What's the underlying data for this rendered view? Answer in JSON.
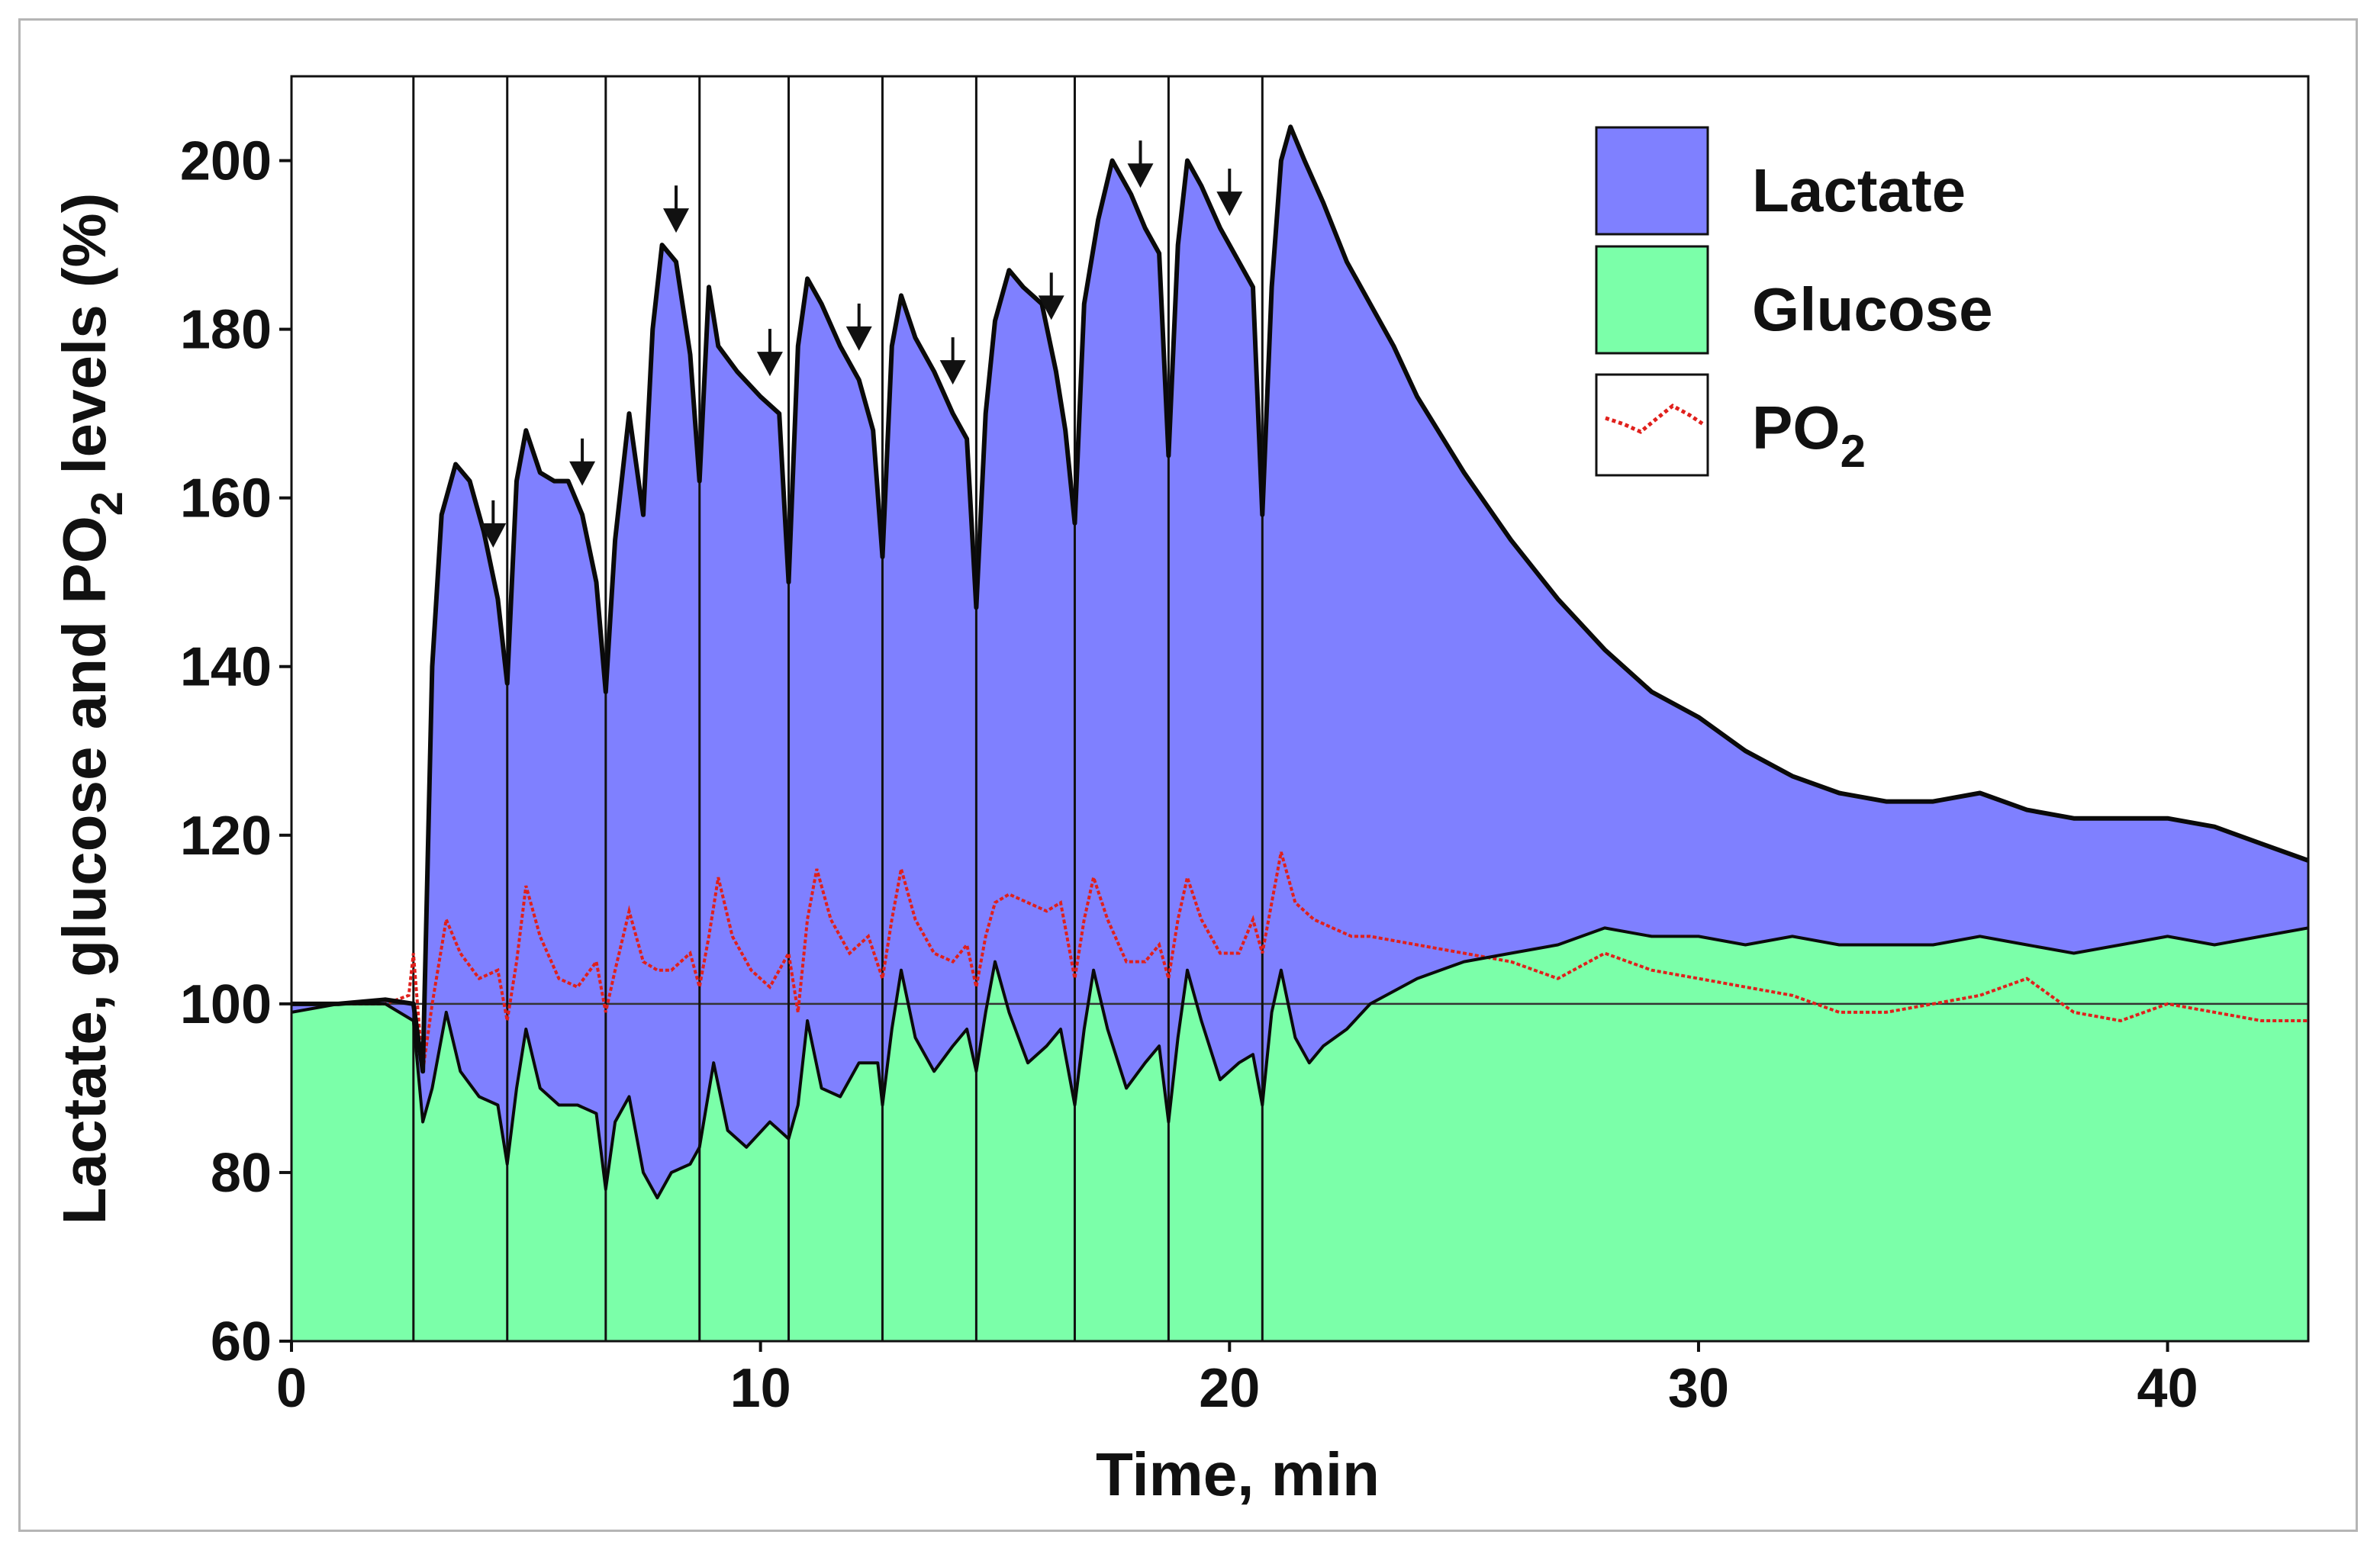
{
  "chart_data": {
    "type": "area",
    "title": "",
    "xlabel": "Time, min",
    "ylabel": "Lactate, glucose and PO2 levels (%)",
    "ylabel_parts": {
      "pre": "Lactate, glucose and PO",
      "sub": "2",
      "post": " levels (%)"
    },
    "xlim": [
      0,
      43
    ],
    "ylim": [
      60,
      210
    ],
    "xticks": [
      0,
      10,
      20,
      30,
      40
    ],
    "yticks": [
      60,
      80,
      100,
      120,
      140,
      160,
      180,
      200
    ],
    "reference_line": 100,
    "legend_position": "top-right",
    "legend": [
      {
        "name": "Lactate",
        "color": "#7f80ff",
        "kind": "area"
      },
      {
        "name": "Glucose",
        "color": "#7bffa9",
        "kind": "area"
      },
      {
        "name": "PO2",
        "label_main": "PO",
        "label_sub": "2",
        "color": "#e0201c",
        "kind": "dotted-line"
      }
    ],
    "vertical_markers_min": [
      2.6,
      4.6,
      6.7,
      8.7,
      10.6,
      12.6,
      14.6,
      16.7,
      18.7,
      20.7
    ],
    "arrow_markers_min": [
      4.3,
      6.2,
      8.2,
      10.2,
      12.1,
      14.1,
      16.2,
      18.1,
      20.0
    ],
    "series": [
      {
        "name": "Lactate",
        "color": "#7f80ff",
        "points": [
          [
            0,
            100
          ],
          [
            1,
            100
          ],
          [
            2,
            100.5
          ],
          [
            2.6,
            100
          ],
          [
            2.8,
            92
          ],
          [
            3.0,
            140
          ],
          [
            3.2,
            158
          ],
          [
            3.5,
            164
          ],
          [
            3.8,
            162
          ],
          [
            4.1,
            156
          ],
          [
            4.4,
            148
          ],
          [
            4.6,
            138
          ],
          [
            4.8,
            162
          ],
          [
            5.0,
            168
          ],
          [
            5.3,
            163
          ],
          [
            5.6,
            162
          ],
          [
            5.9,
            162
          ],
          [
            6.2,
            158
          ],
          [
            6.5,
            150
          ],
          [
            6.7,
            137
          ],
          [
            6.9,
            155
          ],
          [
            7.2,
            170
          ],
          [
            7.5,
            158
          ],
          [
            7.7,
            180
          ],
          [
            7.9,
            190
          ],
          [
            8.2,
            188
          ],
          [
            8.5,
            177
          ],
          [
            8.7,
            162
          ],
          [
            8.9,
            185
          ],
          [
            9.1,
            178
          ],
          [
            9.5,
            175
          ],
          [
            10.0,
            172
          ],
          [
            10.4,
            170
          ],
          [
            10.6,
            150
          ],
          [
            10.8,
            178
          ],
          [
            11.0,
            186
          ],
          [
            11.3,
            183
          ],
          [
            11.7,
            178
          ],
          [
            12.1,
            174
          ],
          [
            12.4,
            168
          ],
          [
            12.6,
            153
          ],
          [
            12.8,
            178
          ],
          [
            13.0,
            184
          ],
          [
            13.3,
            179
          ],
          [
            13.7,
            175
          ],
          [
            14.1,
            170
          ],
          [
            14.4,
            167
          ],
          [
            14.6,
            147
          ],
          [
            14.8,
            170
          ],
          [
            15.0,
            181
          ],
          [
            15.3,
            187
          ],
          [
            15.6,
            185
          ],
          [
            16.0,
            183
          ],
          [
            16.3,
            175
          ],
          [
            16.5,
            168
          ],
          [
            16.7,
            157
          ],
          [
            16.9,
            183
          ],
          [
            17.2,
            193
          ],
          [
            17.5,
            200
          ],
          [
            17.9,
            196
          ],
          [
            18.2,
            192
          ],
          [
            18.5,
            189
          ],
          [
            18.7,
            165
          ],
          [
            18.9,
            190
          ],
          [
            19.1,
            200
          ],
          [
            19.4,
            197
          ],
          [
            19.8,
            192
          ],
          [
            20.2,
            188
          ],
          [
            20.5,
            185
          ],
          [
            20.7,
            158
          ],
          [
            20.9,
            185
          ],
          [
            21.1,
            200
          ],
          [
            21.3,
            204
          ],
          [
            21.6,
            200
          ],
          [
            22.0,
            195
          ],
          [
            22.5,
            188
          ],
          [
            23.0,
            183
          ],
          [
            23.5,
            178
          ],
          [
            24,
            172
          ],
          [
            25,
            163
          ],
          [
            26,
            155
          ],
          [
            27,
            148
          ],
          [
            28,
            142
          ],
          [
            29,
            137
          ],
          [
            30,
            134
          ],
          [
            31,
            130
          ],
          [
            32,
            127
          ],
          [
            33,
            125
          ],
          [
            34,
            124
          ],
          [
            35,
            124
          ],
          [
            36,
            125
          ],
          [
            37,
            123
          ],
          [
            38,
            122
          ],
          [
            39,
            122
          ],
          [
            40,
            122
          ],
          [
            41,
            121
          ],
          [
            42,
            119
          ],
          [
            43,
            117
          ]
        ]
      },
      {
        "name": "Glucose",
        "color": "#7bffa9",
        "points": [
          [
            0,
            99
          ],
          [
            1,
            100
          ],
          [
            2,
            100
          ],
          [
            2.6,
            98
          ],
          [
            2.8,
            86
          ],
          [
            3.0,
            90
          ],
          [
            3.3,
            99
          ],
          [
            3.6,
            92
          ],
          [
            4.0,
            89
          ],
          [
            4.4,
            88
          ],
          [
            4.6,
            81
          ],
          [
            4.8,
            90
          ],
          [
            5.0,
            97
          ],
          [
            5.3,
            90
          ],
          [
            5.7,
            88
          ],
          [
            6.1,
            88
          ],
          [
            6.5,
            87
          ],
          [
            6.7,
            78
          ],
          [
            6.9,
            86
          ],
          [
            7.2,
            89
          ],
          [
            7.5,
            80
          ],
          [
            7.8,
            77
          ],
          [
            8.1,
            80
          ],
          [
            8.5,
            81
          ],
          [
            8.7,
            83
          ],
          [
            9.0,
            93
          ],
          [
            9.3,
            85
          ],
          [
            9.7,
            83
          ],
          [
            10.2,
            86
          ],
          [
            10.6,
            84
          ],
          [
            10.8,
            88
          ],
          [
            11.0,
            98
          ],
          [
            11.3,
            90
          ],
          [
            11.7,
            89
          ],
          [
            12.1,
            93
          ],
          [
            12.5,
            93
          ],
          [
            12.6,
            88
          ],
          [
            12.8,
            97
          ],
          [
            13.0,
            104
          ],
          [
            13.3,
            96
          ],
          [
            13.7,
            92
          ],
          [
            14.1,
            95
          ],
          [
            14.4,
            97
          ],
          [
            14.6,
            92
          ],
          [
            14.8,
            99
          ],
          [
            15.0,
            105
          ],
          [
            15.3,
            99
          ],
          [
            15.7,
            93
          ],
          [
            16.1,
            95
          ],
          [
            16.4,
            97
          ],
          [
            16.7,
            88
          ],
          [
            16.9,
            97
          ],
          [
            17.1,
            104
          ],
          [
            17.4,
            97
          ],
          [
            17.8,
            90
          ],
          [
            18.2,
            93
          ],
          [
            18.5,
            95
          ],
          [
            18.7,
            86
          ],
          [
            18.9,
            96
          ],
          [
            19.1,
            104
          ],
          [
            19.4,
            98
          ],
          [
            19.8,
            91
          ],
          [
            20.2,
            93
          ],
          [
            20.5,
            94
          ],
          [
            20.7,
            88
          ],
          [
            20.9,
            99
          ],
          [
            21.1,
            104
          ],
          [
            21.4,
            96
          ],
          [
            21.7,
            93
          ],
          [
            22.0,
            95
          ],
          [
            22.5,
            97
          ],
          [
            23,
            100
          ],
          [
            24,
            103
          ],
          [
            25,
            105
          ],
          [
            26,
            106
          ],
          [
            27,
            107
          ],
          [
            28,
            109
          ],
          [
            29,
            108
          ],
          [
            30,
            108
          ],
          [
            31,
            107
          ],
          [
            32,
            108
          ],
          [
            33,
            107
          ],
          [
            34,
            107
          ],
          [
            35,
            107
          ],
          [
            36,
            108
          ],
          [
            37,
            107
          ],
          [
            38,
            106
          ],
          [
            39,
            107
          ],
          [
            40,
            108
          ],
          [
            41,
            107
          ],
          [
            42,
            108
          ],
          [
            43,
            109
          ]
        ]
      },
      {
        "name": "PO2",
        "color": "#e0201c",
        "points": [
          [
            0,
            100
          ],
          [
            1,
            100
          ],
          [
            2,
            100
          ],
          [
            2.5,
            101
          ],
          [
            2.6,
            106
          ],
          [
            2.8,
            92
          ],
          [
            3.0,
            100
          ],
          [
            3.3,
            110
          ],
          [
            3.6,
            106
          ],
          [
            4.0,
            103
          ],
          [
            4.4,
            104
          ],
          [
            4.6,
            98
          ],
          [
            4.8,
            105
          ],
          [
            5.0,
            114
          ],
          [
            5.3,
            108
          ],
          [
            5.7,
            103
          ],
          [
            6.1,
            102
          ],
          [
            6.5,
            105
          ],
          [
            6.7,
            99
          ],
          [
            6.9,
            104
          ],
          [
            7.2,
            111
          ],
          [
            7.5,
            105
          ],
          [
            7.8,
            104
          ],
          [
            8.1,
            104
          ],
          [
            8.5,
            106
          ],
          [
            8.7,
            102
          ],
          [
            8.9,
            108
          ],
          [
            9.1,
            115
          ],
          [
            9.4,
            108
          ],
          [
            9.8,
            104
          ],
          [
            10.2,
            102
          ],
          [
            10.6,
            106
          ],
          [
            10.8,
            99
          ],
          [
            11.0,
            110
          ],
          [
            11.2,
            116
          ],
          [
            11.5,
            110
          ],
          [
            11.9,
            106
          ],
          [
            12.3,
            108
          ],
          [
            12.6,
            103
          ],
          [
            12.8,
            110
          ],
          [
            13.0,
            116
          ],
          [
            13.3,
            110
          ],
          [
            13.7,
            106
          ],
          [
            14.1,
            105
          ],
          [
            14.4,
            107
          ],
          [
            14.6,
            102
          ],
          [
            14.8,
            108
          ],
          [
            15.0,
            112
          ],
          [
            15.3,
            113
          ],
          [
            15.7,
            112
          ],
          [
            16.1,
            111
          ],
          [
            16.4,
            112
          ],
          [
            16.7,
            103
          ],
          [
            16.9,
            110
          ],
          [
            17.1,
            115
          ],
          [
            17.4,
            110
          ],
          [
            17.8,
            105
          ],
          [
            18.2,
            105
          ],
          [
            18.5,
            107
          ],
          [
            18.7,
            103
          ],
          [
            18.9,
            110
          ],
          [
            19.1,
            115
          ],
          [
            19.4,
            110
          ],
          [
            19.8,
            106
          ],
          [
            20.2,
            106
          ],
          [
            20.5,
            110
          ],
          [
            20.7,
            106
          ],
          [
            20.9,
            112
          ],
          [
            21.1,
            118
          ],
          [
            21.4,
            112
          ],
          [
            21.8,
            110
          ],
          [
            22.2,
            109
          ],
          [
            22.6,
            108
          ],
          [
            23,
            108
          ],
          [
            24,
            107
          ],
          [
            25,
            106
          ],
          [
            26,
            105
          ],
          [
            27,
            103
          ],
          [
            28,
            106
          ],
          [
            29,
            104
          ],
          [
            30,
            103
          ],
          [
            31,
            102
          ],
          [
            32,
            101
          ],
          [
            33,
            99
          ],
          [
            34,
            99
          ],
          [
            35,
            100
          ],
          [
            36,
            101
          ],
          [
            37,
            103
          ],
          [
            38,
            99
          ],
          [
            39,
            98
          ],
          [
            40,
            100
          ],
          [
            41,
            99
          ],
          [
            42,
            98
          ],
          [
            43,
            98
          ]
        ]
      }
    ]
  }
}
